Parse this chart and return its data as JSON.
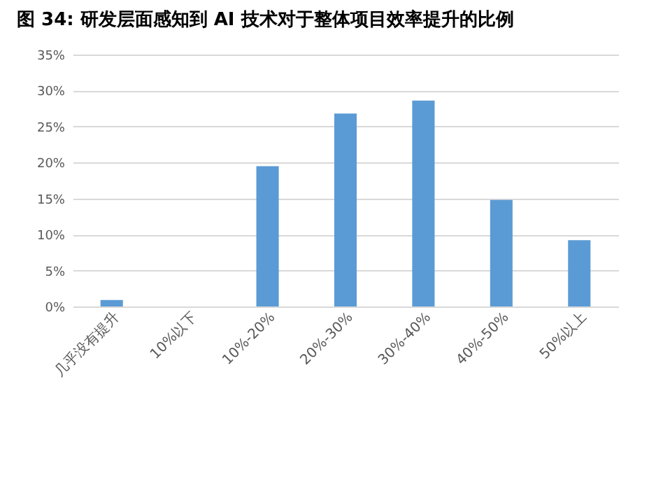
{
  "chart_data": {
    "type": "bar",
    "title": "图 34: 研发层面感知到 AI 技术对于整体项目效率提升的比例",
    "categories": [
      "几乎没有提升",
      "10%以下",
      "10%-20%",
      "20%-30%",
      "30%-40%",
      "40%-50%",
      "50%以上"
    ],
    "values": [
      0.9,
      0,
      19.5,
      26.8,
      28.6,
      14.8,
      9.2
    ],
    "color": "#5b9bd5",
    "ylim": [
      0,
      35
    ],
    "yticks": [
      {
        "value": 0,
        "label": "0%"
      },
      {
        "value": 5,
        "label": "5%"
      },
      {
        "value": 10,
        "label": "10%"
      },
      {
        "value": 15,
        "label": "15%"
      },
      {
        "value": 20,
        "label": "20%"
      },
      {
        "value": 25,
        "label": "25%"
      },
      {
        "value": 30,
        "label": "30%"
      },
      {
        "value": 35,
        "label": "35%"
      }
    ],
    "grid": "y"
  }
}
